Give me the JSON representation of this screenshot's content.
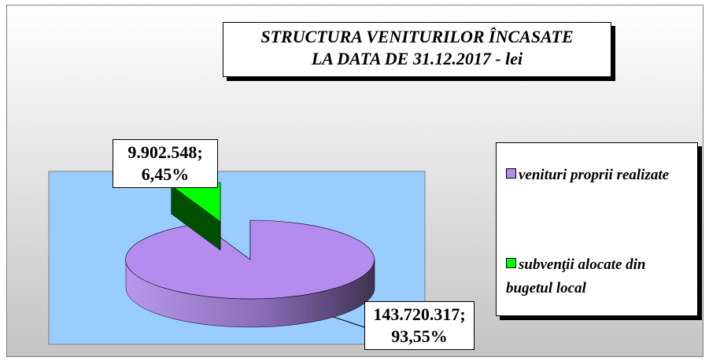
{
  "chart_data": {
    "type": "pie3d",
    "title": "STRUCTURA VENITURILOR ÎNCASATE\nLA DATA DE  31.12.2017 - lei",
    "categories": [
      "venituri proprii realizate",
      "subvenţii alocate din bugetul local"
    ],
    "values": [
      143720317,
      9902548
    ],
    "value_labels": [
      "143.720.317;",
      "9.902.548;"
    ],
    "percents": [
      93.55,
      6.45
    ],
    "percent_labels": [
      "93,55%",
      "6,45%"
    ],
    "colors": [
      "#b48cf0",
      "#00ff00"
    ],
    "legend": "right"
  }
}
